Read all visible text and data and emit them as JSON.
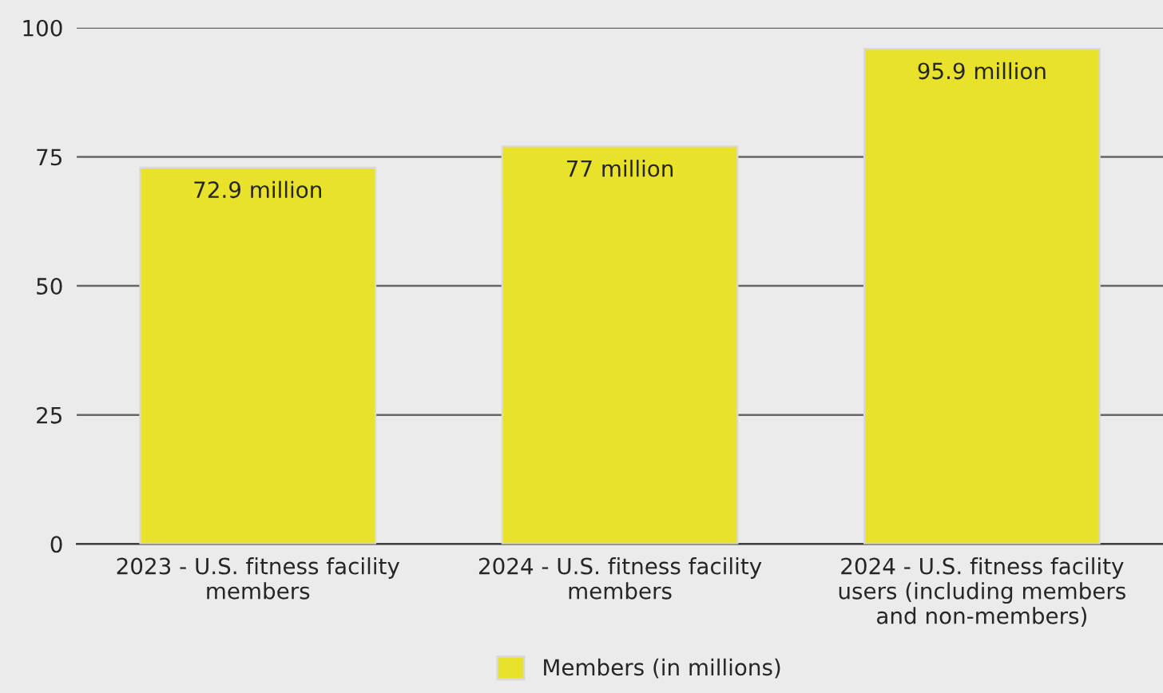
{
  "chart_data": {
    "type": "bar",
    "categories": [
      "2023 - U.S. fitness facility\nmembers",
      "2024 - U.S. fitness facility\nmembers",
      "2024 - U.S. fitness facility\nusers (including members\nand non-members)"
    ],
    "series": [
      {
        "name": "Members (in millions)",
        "color": "#e8e22a",
        "values": [
          72.9,
          77,
          95.9
        ],
        "value_labels": [
          "72.9 million",
          "77 million",
          "95.9 million"
        ]
      }
    ],
    "ylim": [
      0,
      100
    ],
    "yticks": [
      0,
      25,
      50,
      75,
      100
    ],
    "grid": "y",
    "legend": "bottom"
  }
}
